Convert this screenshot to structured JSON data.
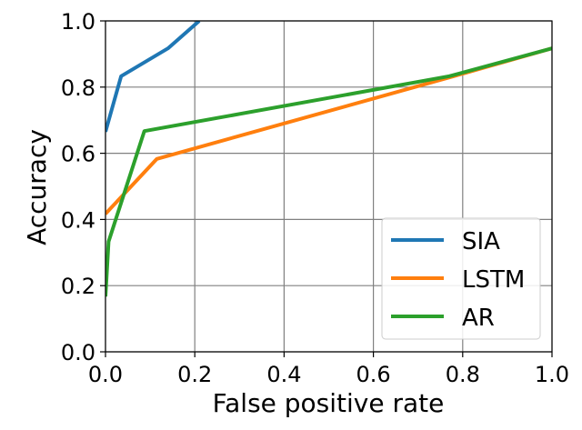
{
  "chart_data": {
    "type": "line",
    "title": "",
    "xlabel": "False positive rate",
    "ylabel": "Accuracy",
    "xlim": [
      0.0,
      1.0
    ],
    "ylim": [
      0.0,
      1.0
    ],
    "xticks": [
      "0.0",
      "0.2",
      "0.4",
      "0.6",
      "0.8",
      "1.0"
    ],
    "yticks": [
      "0.0",
      "0.2",
      "0.4",
      "0.6",
      "0.8",
      "1.0"
    ],
    "grid": true,
    "legend_position": "lower-right",
    "series": [
      {
        "name": "SIA",
        "color": "#1f77b4",
        "points": [
          [
            0.0,
            0.665
          ],
          [
            0.035,
            0.833
          ],
          [
            0.14,
            0.917
          ],
          [
            0.21,
            1.0
          ]
        ]
      },
      {
        "name": "LSTM",
        "color": "#ff7f0e",
        "points": [
          [
            0.0,
            0.417
          ],
          [
            0.115,
            0.583
          ],
          [
            0.78,
            0.833
          ],
          [
            1.0,
            0.917
          ]
        ]
      },
      {
        "name": "AR",
        "color": "#2ca02c",
        "points": [
          [
            0.0,
            0.167
          ],
          [
            0.007,
            0.333
          ],
          [
            0.087,
            0.667
          ],
          [
            0.77,
            0.833
          ],
          [
            1.0,
            0.917
          ]
        ]
      }
    ]
  }
}
